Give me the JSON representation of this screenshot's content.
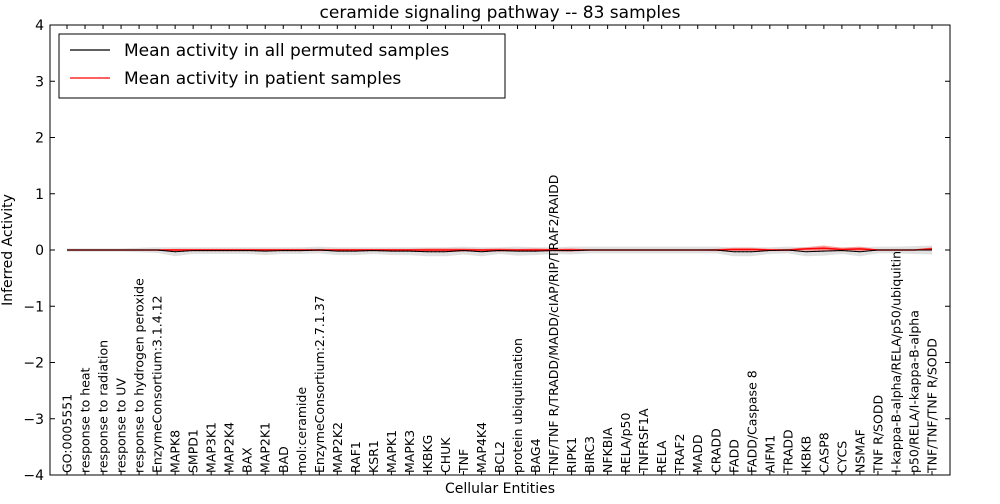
{
  "chart_data": {
    "type": "line",
    "title": "ceramide signaling pathway -- 83 samples",
    "xlabel": "Cellular Entities",
    "ylabel": "Inferred Activity",
    "ylim": [
      -4,
      4
    ],
    "yticks": [
      4,
      3,
      2,
      1,
      0,
      -1,
      -2,
      -3,
      -4
    ],
    "ytick_labels": [
      "4",
      "3",
      "2",
      "1",
      "0",
      "−1",
      "−2",
      "−3",
      "−4"
    ],
    "legend_position": "top-left",
    "categories": [
      "GO:0005551",
      "response to heat",
      "response to radiation",
      "response to UV",
      "response to hydrogen peroxide",
      "EnzymeConsortium:3.1.4.12",
      "MAPK8",
      "SMPD1",
      "MAP3K1",
      "MAP2K4",
      "BAX",
      "MAP2K1",
      "BAD",
      "mol:ceramide",
      "EnzymeConsortium:2.7.1.37",
      "MAP2K2",
      "RAF1",
      "KSR1",
      "MAPK1",
      "MAPK3",
      "IKBKG",
      "CHUK",
      "TNF",
      "MAP4K4",
      "BCL2",
      "protein ubiquitination",
      "BAG4",
      "TNF/TNF R/TRADD/MADD/cIAP/RIP/TRAF2/RAIDD",
      "RIPK1",
      "BIRC3",
      "NFKBIA",
      "RELA/p50",
      "TNFRSF1A",
      "RELA",
      "TRAF2",
      "MADD",
      "CRADD",
      "FADD",
      "FADD/Caspase 8",
      "AIFM1",
      "TRADD",
      "IKBKB",
      "CASP8",
      "CYCS",
      "NSMAF",
      "TNF R/SODD",
      "I-kappa-B-alpha/RELA/p50/ubiquitin",
      "p50/RELA/I-kappa-B-alpha",
      "TNF/TNF/TNF R/SODD"
    ],
    "series": [
      {
        "name": "Mean activity in all permuted samples",
        "color": "#000000",
        "band_color": "#bbbbbb",
        "values": [
          0,
          0,
          0,
          0,
          0,
          0,
          -0.03,
          -0.01,
          -0.01,
          -0.01,
          -0.01,
          -0.02,
          -0.01,
          -0.01,
          0,
          -0.02,
          -0.02,
          -0.01,
          -0.02,
          -0.02,
          -0.03,
          -0.03,
          -0.01,
          -0.03,
          -0.01,
          -0.02,
          -0.02,
          -0.01,
          -0.01,
          0,
          0,
          0,
          0,
          0,
          0,
          0,
          0,
          -0.03,
          -0.03,
          -0.01,
          0,
          -0.03,
          -0.02,
          -0.01,
          -0.03,
          0,
          0,
          0,
          0
        ],
        "band": [
          0.03,
          0.03,
          0.03,
          0.03,
          0.04,
          0.05,
          0.08,
          0.06,
          0.06,
          0.06,
          0.06,
          0.07,
          0.06,
          0.06,
          0.06,
          0.07,
          0.07,
          0.06,
          0.07,
          0.07,
          0.08,
          0.08,
          0.07,
          0.08,
          0.06,
          0.08,
          0.07,
          0.06,
          0.07,
          0.06,
          0.06,
          0.06,
          0.06,
          0.06,
          0.06,
          0.06,
          0.06,
          0.08,
          0.08,
          0.06,
          0.06,
          0.08,
          0.08,
          0.06,
          0.08,
          0.06,
          0.06,
          0.07,
          0.08
        ]
      },
      {
        "name": "Mean activity in patient samples",
        "color": "#ff0000",
        "band_color": "#ff6666",
        "values": [
          0,
          0,
          0,
          0,
          0,
          0,
          0,
          0,
          0,
          0,
          0,
          0,
          0,
          0,
          0,
          0,
          0,
          0,
          0,
          0,
          0,
          0,
          0,
          0,
          0,
          0,
          0,
          0,
          0,
          0,
          0,
          0,
          0,
          0,
          0,
          0,
          0,
          0.01,
          0.01,
          0,
          0,
          0.02,
          0.03,
          0.01,
          0.02,
          0,
          0,
          0,
          0.02
        ],
        "band": [
          0.01,
          0.01,
          0.01,
          0.01,
          0.01,
          0.01,
          0.02,
          0.02,
          0.02,
          0.02,
          0.02,
          0.02,
          0.02,
          0.02,
          0.02,
          0.02,
          0.02,
          0.02,
          0.02,
          0.02,
          0.03,
          0.03,
          0.03,
          0.02,
          0.03,
          0.02,
          0.03,
          0.02,
          0.03,
          0.01,
          0.01,
          0.01,
          0.01,
          0.01,
          0.01,
          0.01,
          0.02,
          0.03,
          0.03,
          0.02,
          0.02,
          0.03,
          0.05,
          0.03,
          0.04,
          0.01,
          0.01,
          0.01,
          0.03
        ]
      }
    ]
  }
}
